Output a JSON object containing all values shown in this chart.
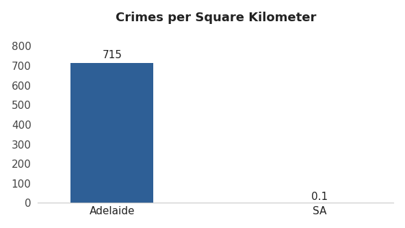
{
  "categories": [
    "Adelaide",
    "SA"
  ],
  "values": [
    715,
    0.1
  ],
  "bar_colors": [
    "#2e5f96",
    "#2e5f96"
  ],
  "title": "Crimes per Square Kilometer",
  "title_fontsize": 13,
  "label_fontsize": 11,
  "value_labels": [
    "715",
    "0.1"
  ],
  "ylim": [
    0,
    880
  ],
  "yticks": [
    0,
    100,
    200,
    300,
    400,
    500,
    600,
    700,
    800
  ],
  "bar_width": 0.28,
  "background_color": "#ffffff",
  "tick_color": "#444444",
  "label_color": "#222222",
  "x_positions": [
    0.15,
    0.85
  ]
}
